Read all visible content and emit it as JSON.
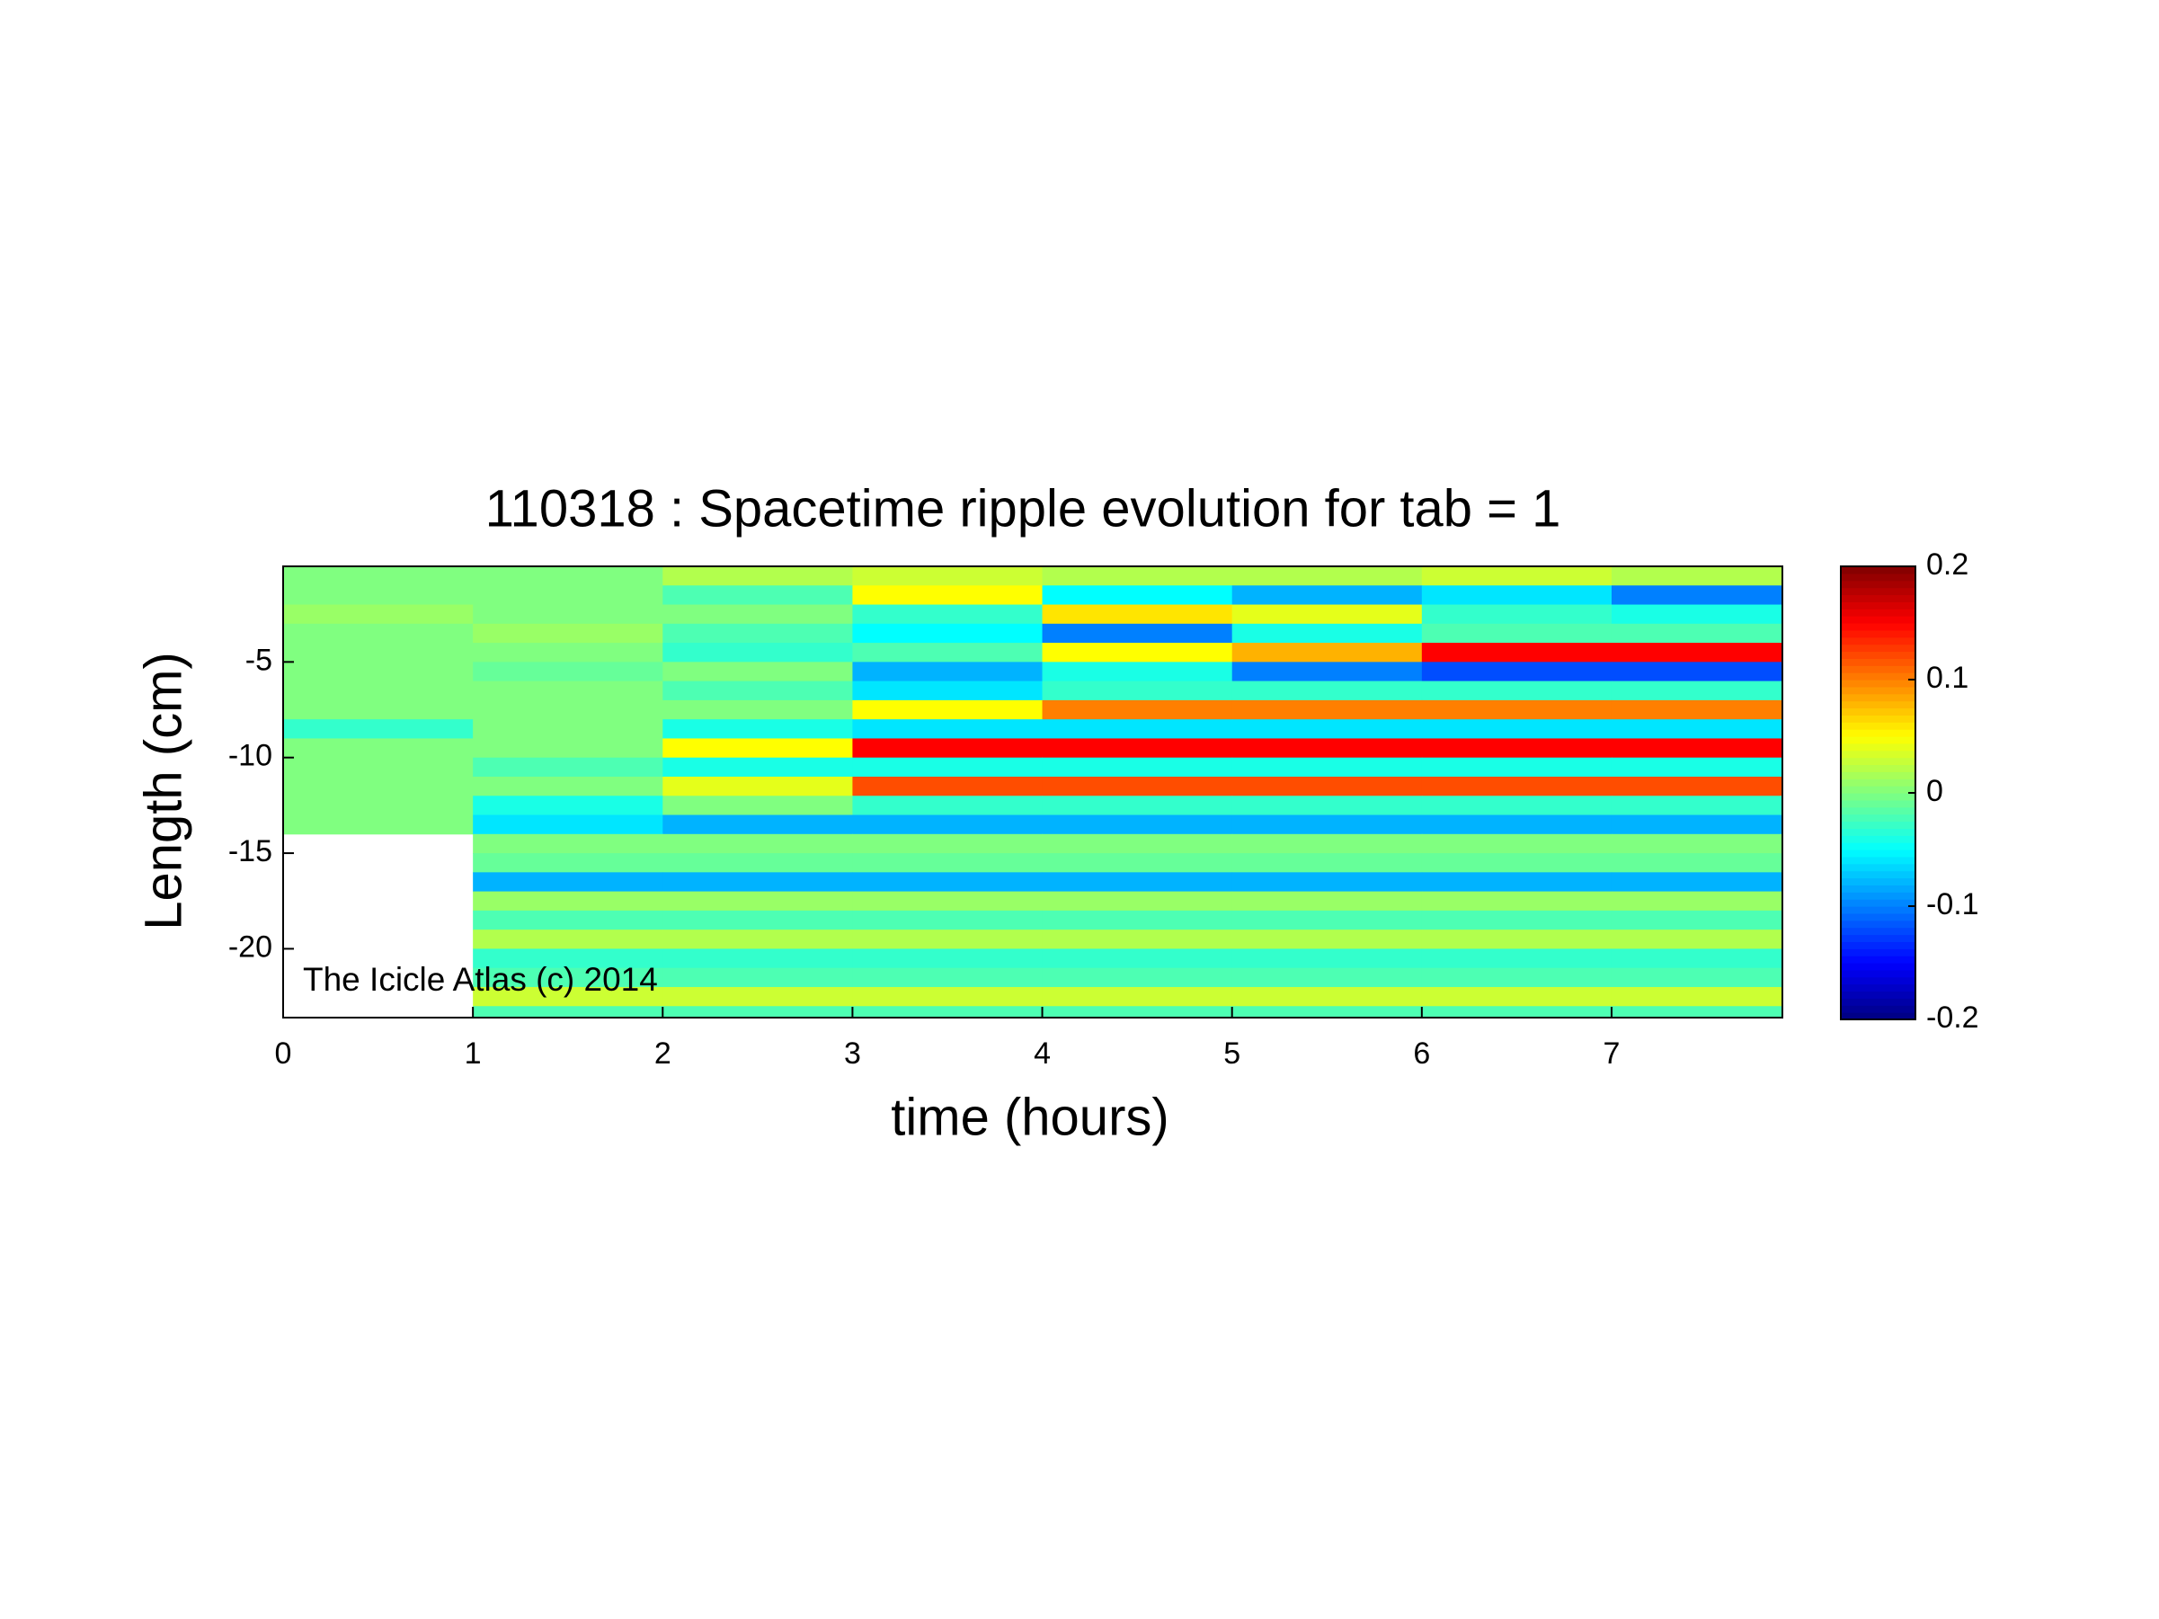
{
  "chart_data": {
    "type": "heatmap",
    "title": "110318 : Spacetime ripple evolution for tab = 1",
    "xlabel": "time (hours)",
    "ylabel": "Length (cm)",
    "annotation": "The Icicle Atlas (c) 2014",
    "colormap": "jet",
    "x_edges": [
      0,
      1,
      2,
      3,
      4,
      5,
      6,
      7,
      7.9
    ],
    "y_edges": [
      0,
      -1,
      -2,
      -3,
      -4,
      -5,
      -6,
      -7,
      -8,
      -9,
      -10,
      -11,
      -12,
      -13,
      -14,
      -15,
      -16,
      -17,
      -18,
      -19,
      -20,
      -21,
      -22,
      -23,
      -23.6
    ],
    "z": [
      [
        0,
        0,
        0.02,
        0.03,
        0.02,
        0.02,
        0.03,
        0.02
      ],
      [
        0,
        0,
        -0.02,
        0.05,
        -0.05,
        -0.08,
        -0.06,
        -0.1
      ],
      [
        0.01,
        0,
        0,
        -0.03,
        0.06,
        0.04,
        -0.03,
        -0.04
      ],
      [
        0,
        0.01,
        -0.02,
        -0.05,
        -0.1,
        -0.04,
        -0.02,
        -0.02
      ],
      [
        0,
        0,
        -0.03,
        -0.02,
        0.05,
        0.08,
        0.15,
        0.15
      ],
      [
        0,
        -0.01,
        0,
        -0.08,
        -0.04,
        -0.1,
        -0.12,
        -0.12
      ],
      [
        0,
        0,
        -0.02,
        -0.06,
        -0.03,
        -0.03,
        -0.03,
        -0.03
      ],
      [
        0,
        0,
        0,
        0.05,
        0.1,
        0.1,
        0.1,
        0.1
      ],
      [
        -0.03,
        0,
        -0.04,
        -0.06,
        -0.06,
        -0.06,
        -0.06,
        -0.06
      ],
      [
        0,
        0,
        0.05,
        0.15,
        0.15,
        0.15,
        0.15,
        0.15
      ],
      [
        0,
        -0.02,
        -0.04,
        -0.04,
        -0.04,
        -0.04,
        -0.04,
        -0.04
      ],
      [
        0,
        0,
        0.04,
        0.12,
        0.12,
        0.12,
        0.12,
        0.12
      ],
      [
        0,
        -0.04,
        0,
        -0.03,
        -0.03,
        -0.03,
        -0.03,
        -0.03
      ],
      [
        0,
        -0.06,
        -0.08,
        -0.08,
        -0.08,
        -0.08,
        -0.08,
        -0.08
      ],
      [
        null,
        0,
        0,
        0,
        0,
        0,
        0,
        0
      ],
      [
        null,
        -0.01,
        -0.01,
        -0.01,
        -0.01,
        -0.01,
        -0.01,
        -0.01
      ],
      [
        null,
        -0.08,
        -0.08,
        -0.08,
        -0.08,
        -0.08,
        -0.08,
        -0.08
      ],
      [
        null,
        0.01,
        0.01,
        0.01,
        0.01,
        0.01,
        0.01,
        0.01
      ],
      [
        null,
        -0.02,
        -0.02,
        -0.02,
        -0.02,
        -0.02,
        -0.02,
        -0.02
      ],
      [
        null,
        0.02,
        0.02,
        0.02,
        0.02,
        0.02,
        0.02,
        0.02
      ],
      [
        null,
        -0.03,
        -0.03,
        -0.03,
        -0.03,
        -0.03,
        -0.03,
        -0.03
      ],
      [
        null,
        -0.02,
        -0.02,
        -0.02,
        -0.02,
        -0.02,
        -0.02,
        -0.02
      ],
      [
        null,
        0.03,
        0.03,
        0.03,
        0.03,
        0.03,
        0.03,
        0.03
      ],
      [
        null,
        -0.02,
        -0.02,
        -0.02,
        -0.02,
        -0.02,
        -0.02,
        -0.02
      ]
    ],
    "xlim": [
      0,
      7.9
    ],
    "xticks": [
      0,
      1,
      2,
      3,
      4,
      5,
      6,
      7
    ],
    "ylim": [
      -23.6,
      0
    ],
    "yticks": [
      -20,
      -15,
      -10,
      -5
    ],
    "clim": [
      -0.2,
      0.2
    ],
    "cticks": [
      -0.2,
      -0.1,
      0,
      0.1,
      0.2
    ]
  }
}
